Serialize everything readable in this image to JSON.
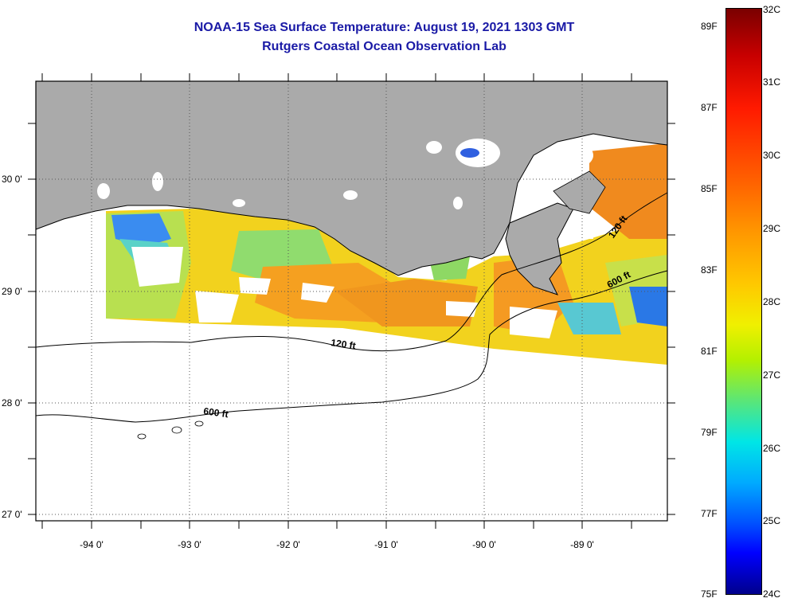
{
  "title_line1": "NOAA-15 Sea Surface Temperature:  August 19, 2021 1303 GMT",
  "title_line2": "Rutgers Coastal Ocean Observation Lab",
  "lat_labels": [
    "30 0'",
    "29 0'",
    "28 0'",
    "27 0'"
  ],
  "lon_labels": [
    "-94 0'",
    "-93 0'",
    "-92 0'",
    "-91 0'",
    "-90 0'",
    "-89 0'"
  ],
  "contour_labels": {
    "shelf_120_west": "120 ft",
    "shelf_600_west": "600 ft",
    "shelf_120_east": "120 ft",
    "shelf_600_east": "600 ft"
  },
  "colorbar": {
    "celsius": [
      "32C",
      "31C",
      "30C",
      "29C",
      "28C",
      "27C",
      "26C",
      "25C",
      "24C"
    ],
    "fahrenheit": [
      "89F",
      "87F",
      "85F",
      "83F",
      "81F",
      "79F",
      "77F",
      "75F"
    ]
  },
  "colors": {
    "title": "#1a1aa6",
    "land": "#aaaaaa",
    "no_data": "#ffffff"
  }
}
